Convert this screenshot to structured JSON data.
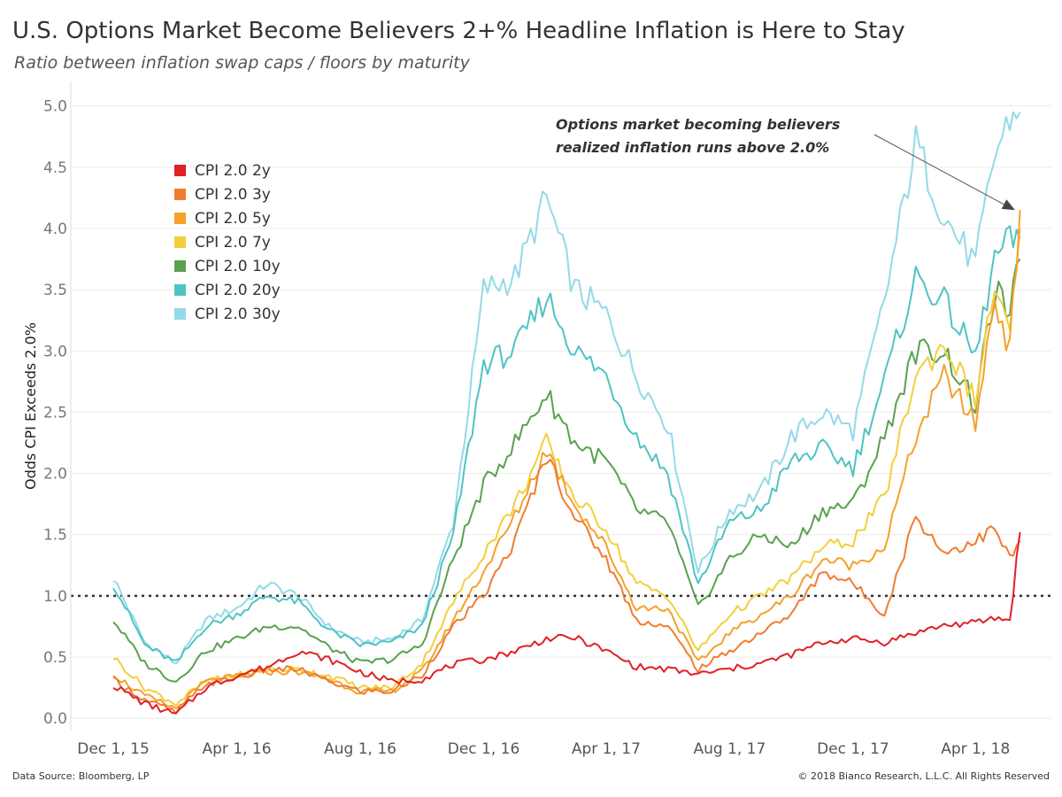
{
  "title": "U.S. Options Market Become Believers 2+% Headline Inflation is Here to Stay",
  "subtitle": "Ratio between inflation swap caps / floors by maturity",
  "footer": {
    "source": "Data Source: Bloomberg, LP",
    "copyright": "© 2018 Bianco Research, L.L.C. All Rights Reserved"
  },
  "chart_data": {
    "type": "line",
    "ylabel": "Odds CPI Exceeds 2.0%",
    "xlabel": "",
    "ylim": [
      -0.1,
      5.2
    ],
    "xlim": [
      "2015-10-20",
      "2018-06-15"
    ],
    "y_ticks": [
      0.0,
      0.5,
      1.0,
      1.5,
      2.0,
      2.5,
      3.0,
      3.5,
      4.0,
      4.5,
      5.0
    ],
    "y_tick_labels": [
      "0.0",
      "0.5",
      "1.0",
      "1.5",
      "2.0",
      "2.5",
      "3.0",
      "3.5",
      "4.0",
      "4.5",
      "5.0"
    ],
    "x_ticks": [
      "2015-12-01",
      "2016-04-01",
      "2016-08-01",
      "2016-12-01",
      "2017-04-01",
      "2017-08-01",
      "2017-12-01",
      "2018-04-01"
    ],
    "x_tick_labels": [
      "Dec 1, 15",
      "Apr 1, 16",
      "Aug 1, 16",
      "Dec 1, 16",
      "Apr 1, 17",
      "Aug 1, 17",
      "Dec 1, 17",
      "Apr 1, 18"
    ],
    "grid": "horizontal",
    "legend_position": "upper-left",
    "reference_line": {
      "y": 1.0,
      "style": "dotted"
    },
    "annotation": {
      "text_line1": "Options market becoming believers",
      "text_line2": "realized inflation runs above 2.0%",
      "arrow_to": {
        "x": "2018-05-10",
        "y": 4.15
      }
    },
    "series": [
      {
        "name": "CPI 2.0 2y",
        "color": "#e02027",
        "points": [
          [
            "2015-12-01",
            0.27
          ],
          [
            "2016-01-01",
            0.12
          ],
          [
            "2016-02-01",
            0.03
          ],
          [
            "2016-03-01",
            0.25
          ],
          [
            "2016-04-01",
            0.35
          ],
          [
            "2016-05-01",
            0.42
          ],
          [
            "2016-06-01",
            0.55
          ],
          [
            "2016-07-01",
            0.48
          ],
          [
            "2016-08-01",
            0.38
          ],
          [
            "2016-09-01",
            0.3
          ],
          [
            "2016-10-01",
            0.32
          ],
          [
            "2016-11-01",
            0.44
          ],
          [
            "2016-12-01",
            0.48
          ],
          [
            "2017-01-01",
            0.55
          ],
          [
            "2017-02-01",
            0.65
          ],
          [
            "2017-03-01",
            0.66
          ],
          [
            "2017-04-01",
            0.55
          ],
          [
            "2017-05-01",
            0.42
          ],
          [
            "2017-06-01",
            0.4
          ],
          [
            "2017-07-01",
            0.36
          ],
          [
            "2017-08-01",
            0.4
          ],
          [
            "2017-09-01",
            0.45
          ],
          [
            "2017-10-01",
            0.52
          ],
          [
            "2017-11-01",
            0.62
          ],
          [
            "2017-12-01",
            0.65
          ],
          [
            "2018-01-01",
            0.62
          ],
          [
            "2018-02-01",
            0.7
          ],
          [
            "2018-03-01",
            0.76
          ],
          [
            "2018-04-01",
            0.78
          ],
          [
            "2018-04-20",
            0.82
          ],
          [
            "2018-05-05",
            0.8
          ],
          [
            "2018-05-15",
            1.52
          ]
        ]
      },
      {
        "name": "CPI 2.0 3y",
        "color": "#f07c30",
        "points": [
          [
            "2015-12-01",
            0.32
          ],
          [
            "2016-01-01",
            0.15
          ],
          [
            "2016-02-01",
            0.05
          ],
          [
            "2016-03-01",
            0.28
          ],
          [
            "2016-04-01",
            0.33
          ],
          [
            "2016-05-01",
            0.4
          ],
          [
            "2016-06-01",
            0.4
          ],
          [
            "2016-07-01",
            0.3
          ],
          [
            "2016-08-01",
            0.22
          ],
          [
            "2016-09-01",
            0.22
          ],
          [
            "2016-10-01",
            0.35
          ],
          [
            "2016-11-01",
            0.75
          ],
          [
            "2016-12-01",
            1.0
          ],
          [
            "2017-01-01",
            1.45
          ],
          [
            "2017-02-01",
            2.15
          ],
          [
            "2017-03-01",
            1.65
          ],
          [
            "2017-04-01",
            1.3
          ],
          [
            "2017-05-01",
            0.8
          ],
          [
            "2017-06-01",
            0.75
          ],
          [
            "2017-07-01",
            0.4
          ],
          [
            "2017-08-01",
            0.55
          ],
          [
            "2017-09-01",
            0.7
          ],
          [
            "2017-10-01",
            0.85
          ],
          [
            "2017-11-01",
            1.2
          ],
          [
            "2017-12-01",
            1.1
          ],
          [
            "2018-01-01",
            0.85
          ],
          [
            "2018-02-01",
            1.65
          ],
          [
            "2018-03-01",
            1.35
          ],
          [
            "2018-04-01",
            1.45
          ],
          [
            "2018-04-20",
            1.55
          ],
          [
            "2018-05-05",
            1.3
          ],
          [
            "2018-05-15",
            1.45
          ]
        ]
      },
      {
        "name": "CPI 2.0 5y",
        "color": "#f5a02a",
        "points": [
          [
            "2015-12-01",
            0.36
          ],
          [
            "2016-01-01",
            0.18
          ],
          [
            "2016-02-01",
            0.08
          ],
          [
            "2016-03-01",
            0.3
          ],
          [
            "2016-04-01",
            0.34
          ],
          [
            "2016-05-01",
            0.38
          ],
          [
            "2016-06-01",
            0.38
          ],
          [
            "2016-07-01",
            0.32
          ],
          [
            "2016-08-01",
            0.22
          ],
          [
            "2016-09-01",
            0.22
          ],
          [
            "2016-10-01",
            0.38
          ],
          [
            "2016-11-01",
            0.8
          ],
          [
            "2016-12-01",
            1.2
          ],
          [
            "2017-01-01",
            1.65
          ],
          [
            "2017-02-01",
            2.2
          ],
          [
            "2017-03-01",
            1.75
          ],
          [
            "2017-04-01",
            1.4
          ],
          [
            "2017-05-01",
            0.9
          ],
          [
            "2017-06-01",
            0.9
          ],
          [
            "2017-07-01",
            0.45
          ],
          [
            "2017-08-01",
            0.7
          ],
          [
            "2017-09-01",
            0.85
          ],
          [
            "2017-10-01",
            1.0
          ],
          [
            "2017-11-01",
            1.3
          ],
          [
            "2017-12-01",
            1.25
          ],
          [
            "2018-01-01",
            1.4
          ],
          [
            "2018-02-01",
            2.3
          ],
          [
            "2018-03-01",
            2.8
          ],
          [
            "2018-04-01",
            2.4
          ],
          [
            "2018-04-20",
            3.45
          ],
          [
            "2018-05-05",
            3.0
          ],
          [
            "2018-05-15",
            4.15
          ]
        ]
      },
      {
        "name": "CPI 2.0 7y",
        "color": "#f2cf3b",
        "points": [
          [
            "2015-12-01",
            0.5
          ],
          [
            "2016-01-01",
            0.25
          ],
          [
            "2016-02-01",
            0.12
          ],
          [
            "2016-03-01",
            0.3
          ],
          [
            "2016-04-01",
            0.35
          ],
          [
            "2016-05-01",
            0.4
          ],
          [
            "2016-06-01",
            0.4
          ],
          [
            "2016-07-01",
            0.35
          ],
          [
            "2016-08-01",
            0.25
          ],
          [
            "2016-09-01",
            0.25
          ],
          [
            "2016-10-01",
            0.45
          ],
          [
            "2016-11-01",
            0.95
          ],
          [
            "2016-12-01",
            1.35
          ],
          [
            "2017-01-01",
            1.75
          ],
          [
            "2017-02-01",
            2.25
          ],
          [
            "2017-03-01",
            1.8
          ],
          [
            "2017-04-01",
            1.55
          ],
          [
            "2017-05-01",
            1.1
          ],
          [
            "2017-06-01",
            1.0
          ],
          [
            "2017-07-01",
            0.55
          ],
          [
            "2017-08-01",
            0.85
          ],
          [
            "2017-09-01",
            1.0
          ],
          [
            "2017-10-01",
            1.15
          ],
          [
            "2017-11-01",
            1.4
          ],
          [
            "2017-12-01",
            1.45
          ],
          [
            "2018-01-01",
            1.8
          ],
          [
            "2018-02-01",
            2.8
          ],
          [
            "2018-03-01",
            3.05
          ],
          [
            "2018-04-01",
            2.6
          ],
          [
            "2018-04-20",
            3.55
          ],
          [
            "2018-05-05",
            3.1
          ],
          [
            "2018-05-15",
            4.0
          ]
        ]
      },
      {
        "name": "CPI 2.0 10y",
        "color": "#59a14f",
        "points": [
          [
            "2015-12-01",
            0.8
          ],
          [
            "2016-01-01",
            0.45
          ],
          [
            "2016-02-01",
            0.3
          ],
          [
            "2016-03-01",
            0.55
          ],
          [
            "2016-04-01",
            0.65
          ],
          [
            "2016-05-01",
            0.75
          ],
          [
            "2016-06-01",
            0.75
          ],
          [
            "2016-07-01",
            0.58
          ],
          [
            "2016-08-01",
            0.45
          ],
          [
            "2016-09-01",
            0.48
          ],
          [
            "2016-10-01",
            0.6
          ],
          [
            "2016-11-01",
            1.3
          ],
          [
            "2016-12-01",
            1.9
          ],
          [
            "2017-01-01",
            2.25
          ],
          [
            "2017-02-01",
            2.65
          ],
          [
            "2017-03-01",
            2.25
          ],
          [
            "2017-04-01",
            2.1
          ],
          [
            "2017-05-01",
            1.7
          ],
          [
            "2017-06-01",
            1.6
          ],
          [
            "2017-07-01",
            0.9
          ],
          [
            "2017-08-01",
            1.3
          ],
          [
            "2017-09-01",
            1.5
          ],
          [
            "2017-10-01",
            1.4
          ],
          [
            "2017-11-01",
            1.7
          ],
          [
            "2017-12-01",
            1.75
          ],
          [
            "2018-01-01",
            2.3
          ],
          [
            "2018-02-01",
            3.0
          ],
          [
            "2018-03-01",
            3.0
          ],
          [
            "2018-04-01",
            2.55
          ],
          [
            "2018-04-20",
            3.5
          ],
          [
            "2018-05-05",
            3.3
          ],
          [
            "2018-05-15",
            3.75
          ]
        ]
      },
      {
        "name": "CPI 2.0 20y",
        "color": "#4fc3c3",
        "points": [
          [
            "2015-12-01",
            1.1
          ],
          [
            "2016-01-01",
            0.6
          ],
          [
            "2016-02-01",
            0.45
          ],
          [
            "2016-03-01",
            0.75
          ],
          [
            "2016-04-01",
            0.85
          ],
          [
            "2016-05-01",
            1.0
          ],
          [
            "2016-06-01",
            0.95
          ],
          [
            "2016-07-01",
            0.72
          ],
          [
            "2016-08-01",
            0.6
          ],
          [
            "2016-09-01",
            0.62
          ],
          [
            "2016-10-01",
            0.75
          ],
          [
            "2016-11-01",
            1.5
          ],
          [
            "2016-12-01",
            2.9
          ],
          [
            "2017-01-01",
            3.0
          ],
          [
            "2017-02-01",
            3.45
          ],
          [
            "2017-03-01",
            3.0
          ],
          [
            "2017-04-01",
            2.8
          ],
          [
            "2017-05-01",
            2.3
          ],
          [
            "2017-06-01",
            2.0
          ],
          [
            "2017-07-01",
            1.1
          ],
          [
            "2017-08-01",
            1.6
          ],
          [
            "2017-09-01",
            1.7
          ],
          [
            "2017-10-01",
            2.1
          ],
          [
            "2017-11-01",
            2.2
          ],
          [
            "2017-12-01",
            2.05
          ],
          [
            "2018-01-01",
            2.75
          ],
          [
            "2018-02-01",
            3.6
          ],
          [
            "2018-03-01",
            3.4
          ],
          [
            "2018-04-01",
            2.95
          ],
          [
            "2018-04-20",
            3.75
          ],
          [
            "2018-05-05",
            3.9
          ],
          [
            "2018-05-15",
            3.92
          ]
        ]
      },
      {
        "name": "CPI 2.0 30y",
        "color": "#92dae8",
        "points": [
          [
            "2015-12-01",
            1.15
          ],
          [
            "2016-01-01",
            0.62
          ],
          [
            "2016-02-01",
            0.45
          ],
          [
            "2016-03-01",
            0.8
          ],
          [
            "2016-04-01",
            0.9
          ],
          [
            "2016-05-01",
            1.1
          ],
          [
            "2016-06-01",
            1.0
          ],
          [
            "2016-07-01",
            0.75
          ],
          [
            "2016-08-01",
            0.62
          ],
          [
            "2016-09-01",
            0.65
          ],
          [
            "2016-10-01",
            0.8
          ],
          [
            "2016-11-01",
            1.6
          ],
          [
            "2016-12-01",
            3.5
          ],
          [
            "2017-01-01",
            3.6
          ],
          [
            "2017-02-01",
            4.25
          ],
          [
            "2017-03-01",
            3.5
          ],
          [
            "2017-04-01",
            3.3
          ],
          [
            "2017-05-01",
            2.8
          ],
          [
            "2017-06-01",
            2.4
          ],
          [
            "2017-07-01",
            1.2
          ],
          [
            "2017-08-01",
            1.7
          ],
          [
            "2017-09-01",
            1.85
          ],
          [
            "2017-10-01",
            2.3
          ],
          [
            "2017-11-01",
            2.5
          ],
          [
            "2017-12-01",
            2.35
          ],
          [
            "2018-01-01",
            3.4
          ],
          [
            "2018-02-01",
            4.7
          ],
          [
            "2018-03-01",
            4.1
          ],
          [
            "2018-04-01",
            3.7
          ],
          [
            "2018-04-20",
            4.6
          ],
          [
            "2018-05-05",
            4.9
          ],
          [
            "2018-05-15",
            4.95
          ]
        ]
      }
    ]
  }
}
